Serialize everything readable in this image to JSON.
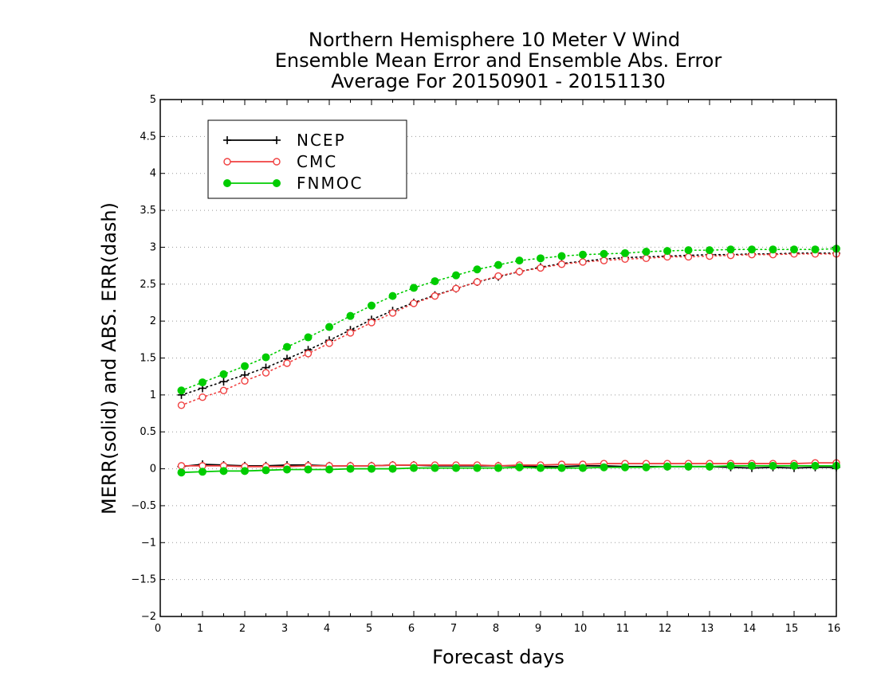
{
  "chart_data": {
    "type": "line",
    "title": [
      "Northern Hemisphere 10 Meter V Wind",
      "Ensemble Mean Error and Ensemble Abs. Error",
      "Average For 20150901 - 20151130"
    ],
    "xlabel": "Forecast days",
    "ylabel": "MERR(solid) and ABS. ERR(dash)",
    "xlim": [
      0,
      16
    ],
    "ylim": [
      -2,
      5
    ],
    "xticks": [
      0,
      1,
      2,
      3,
      4,
      5,
      6,
      7,
      8,
      9,
      10,
      11,
      12,
      13,
      14,
      15,
      16
    ],
    "yticks": [
      -2,
      -1.5,
      -1,
      -0.5,
      0,
      0.5,
      1,
      1.5,
      2,
      2.5,
      3,
      3.5,
      4,
      4.5,
      5
    ],
    "ytick_labels": [
      "−2",
      "−1.5",
      "−1",
      "−0.5",
      "0",
      "0.5",
      "1",
      "1.5",
      "2",
      "2.5",
      "3",
      "3.5",
      "4",
      "4.5",
      "5"
    ],
    "grid": "horizontal-dotted",
    "legend_position": "top-left",
    "x": [
      0.5,
      1,
      1.5,
      2,
      2.5,
      3,
      3.5,
      4,
      4.5,
      5,
      5.5,
      6,
      6.5,
      7,
      7.5,
      8,
      8.5,
      9,
      9.5,
      10,
      10.5,
      11,
      11.5,
      12,
      12.5,
      13,
      13.5,
      14,
      14.5,
      15,
      15.5,
      16
    ],
    "series": [
      {
        "name": "NCEP",
        "color": "#000000",
        "marker": "plus",
        "abs_err": [
          1.0,
          1.09,
          1.18,
          1.27,
          1.37,
          1.49,
          1.61,
          1.74,
          1.88,
          2.02,
          2.14,
          2.25,
          2.35,
          2.44,
          2.53,
          2.6,
          2.67,
          2.73,
          2.78,
          2.81,
          2.84,
          2.86,
          2.87,
          2.88,
          2.89,
          2.9,
          2.9,
          2.91,
          2.91,
          2.92,
          2.92,
          2.92
        ],
        "mean_err": [
          0.03,
          0.06,
          0.05,
          0.04,
          0.04,
          0.05,
          0.05,
          0.04,
          0.04,
          0.04,
          0.05,
          0.05,
          0.04,
          0.04,
          0.04,
          0.04,
          0.04,
          0.03,
          0.03,
          0.04,
          0.04,
          0.03,
          0.03,
          0.03,
          0.03,
          0.03,
          0.02,
          0.01,
          0.02,
          0.01,
          0.02,
          0.02
        ]
      },
      {
        "name": "CMC",
        "color": "#f04040",
        "marker": "open-circle",
        "abs_err": [
          0.86,
          0.97,
          1.06,
          1.19,
          1.3,
          1.43,
          1.56,
          1.7,
          1.84,
          1.98,
          2.11,
          2.24,
          2.34,
          2.44,
          2.53,
          2.61,
          2.67,
          2.72,
          2.77,
          2.8,
          2.82,
          2.84,
          2.85,
          2.87,
          2.87,
          2.88,
          2.89,
          2.9,
          2.9,
          2.91,
          2.91,
          2.91
        ],
        "mean_err": [
          0.04,
          0.04,
          0.04,
          0.03,
          0.03,
          0.03,
          0.04,
          0.04,
          0.04,
          0.04,
          0.05,
          0.05,
          0.05,
          0.05,
          0.05,
          0.04,
          0.05,
          0.05,
          0.06,
          0.06,
          0.07,
          0.07,
          0.07,
          0.07,
          0.07,
          0.07,
          0.07,
          0.07,
          0.07,
          0.07,
          0.08,
          0.08
        ]
      },
      {
        "name": "FNMOC",
        "color": "#00cc00",
        "marker": "filled-circle",
        "abs_err": [
          1.06,
          1.17,
          1.28,
          1.39,
          1.51,
          1.65,
          1.78,
          1.92,
          2.07,
          2.21,
          2.34,
          2.45,
          2.54,
          2.62,
          2.7,
          2.76,
          2.82,
          2.85,
          2.88,
          2.9,
          2.91,
          2.92,
          2.94,
          2.95,
          2.96,
          2.96,
          2.97,
          2.97,
          2.97,
          2.97,
          2.97,
          2.98
        ],
        "mean_err": [
          -0.05,
          -0.04,
          -0.03,
          -0.03,
          -0.02,
          -0.01,
          -0.01,
          -0.01,
          0.0,
          0.0,
          0.0,
          0.01,
          0.01,
          0.01,
          0.01,
          0.01,
          0.02,
          0.01,
          0.01,
          0.01,
          0.02,
          0.02,
          0.02,
          0.03,
          0.03,
          0.03,
          0.04,
          0.04,
          0.04,
          0.04,
          0.04,
          0.04
        ]
      }
    ]
  }
}
